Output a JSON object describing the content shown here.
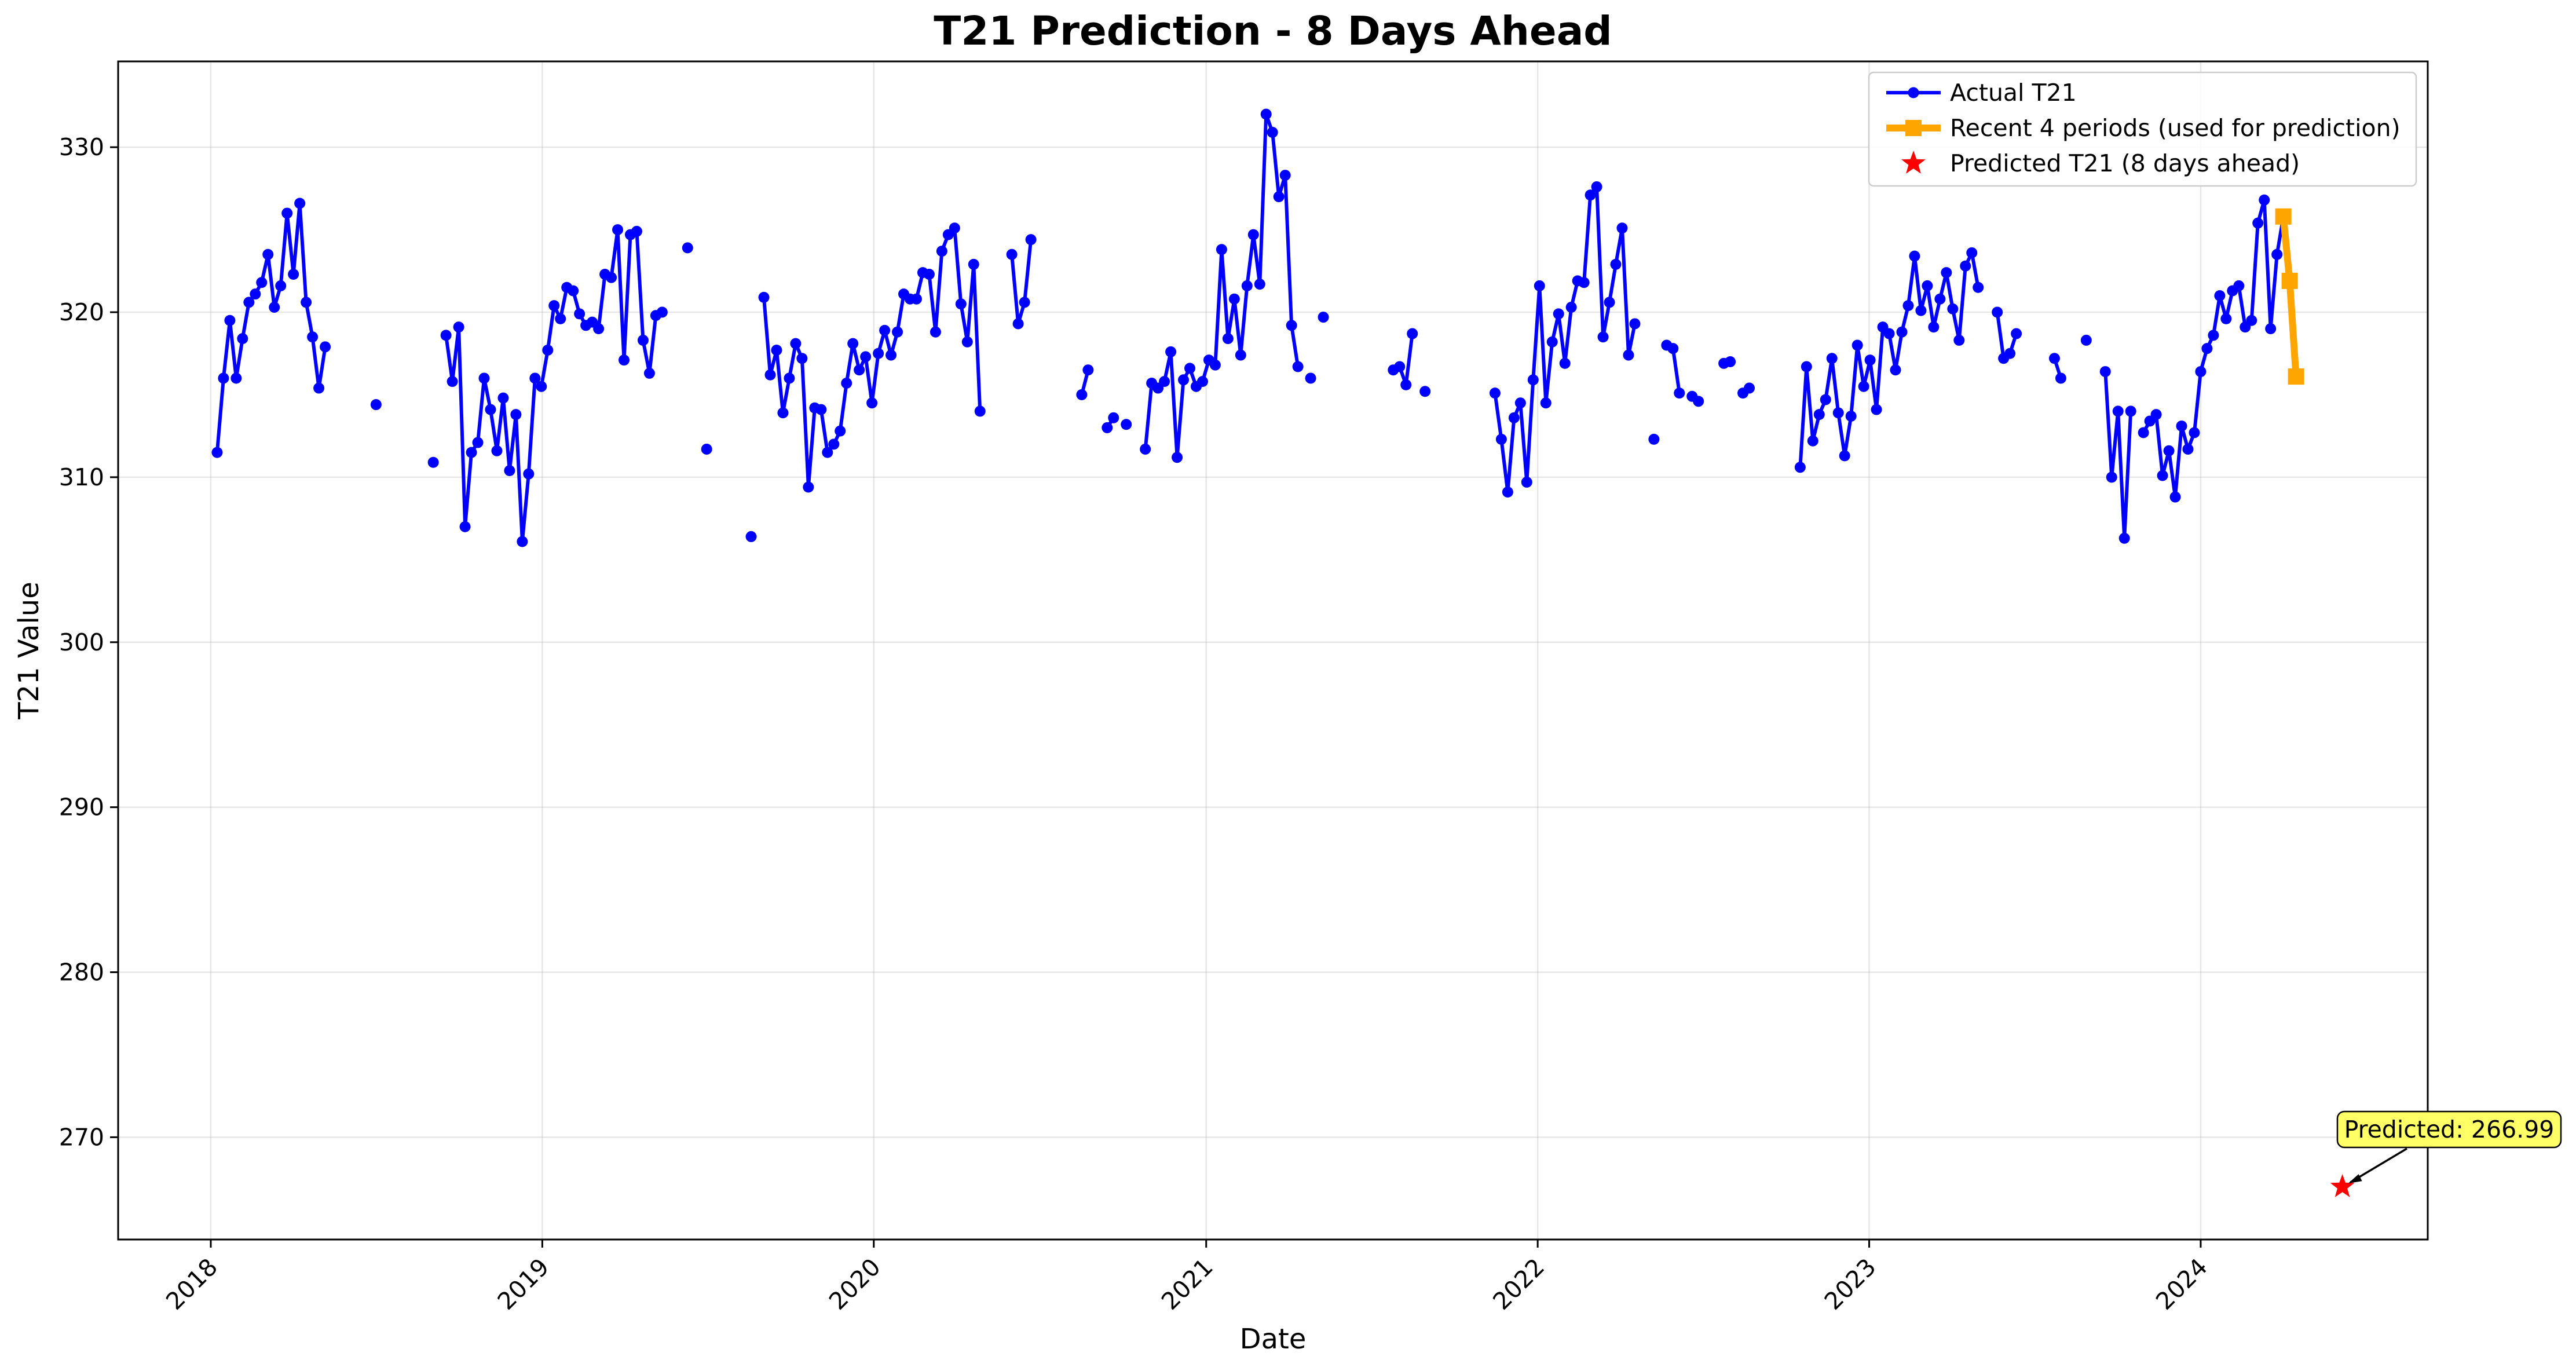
{
  "chart_data": {
    "type": "line",
    "title": "T21 Prediction - 8 Days Ahead",
    "xlabel": "Date",
    "ylabel": "T21 Value",
    "x_type": "date",
    "xlim": [
      "2017-09-21",
      "2024-09-07"
    ],
    "ylim": [
      263.8,
      335.2
    ],
    "grid": true,
    "legend_position": "top-right",
    "x_ticks": [
      "2018",
      "2019",
      "2020",
      "2021",
      "2022",
      "2023",
      "2024"
    ],
    "y_ticks": [
      270,
      280,
      290,
      300,
      310,
      320,
      330
    ],
    "colors": {
      "actual": "#0000ff",
      "recent": "#ffa500",
      "predicted": "#ff0000",
      "annotation_bg": "#ffff66"
    },
    "series": [
      {
        "name": "Actual T21",
        "style": "line-circle-markers",
        "segments": [
          [
            [
              "2018-01-08",
              311.5
            ],
            [
              "2018-01-15",
              316.0
            ],
            [
              "2018-01-22",
              319.5
            ],
            [
              "2018-01-29",
              316.0
            ],
            [
              "2018-02-05",
              318.4
            ],
            [
              "2018-02-12",
              320.6
            ],
            [
              "2018-02-19",
              321.1
            ],
            [
              "2018-02-26",
              321.8
            ],
            [
              "2018-03-05",
              323.5
            ],
            [
              "2018-03-12",
              320.3
            ],
            [
              "2018-03-19",
              321.6
            ],
            [
              "2018-03-26",
              326.0
            ],
            [
              "2018-04-02",
              322.3
            ],
            [
              "2018-04-09",
              326.6
            ],
            [
              "2018-04-16",
              320.6
            ],
            [
              "2018-04-23",
              318.5
            ],
            [
              "2018-04-30",
              315.4
            ],
            [
              "2018-05-07",
              317.9
            ]
          ],
          [
            [
              "2018-07-02",
              314.4
            ]
          ],
          [
            [
              "2018-09-03",
              310.9
            ]
          ],
          [
            [
              "2018-09-17",
              318.6
            ],
            [
              "2018-09-24",
              315.8
            ],
            [
              "2018-10-01",
              319.1
            ],
            [
              "2018-10-08",
              307.0
            ],
            [
              "2018-10-15",
              311.5
            ],
            [
              "2018-10-22",
              312.1
            ],
            [
              "2018-10-29",
              316.0
            ],
            [
              "2018-11-05",
              314.1
            ],
            [
              "2018-11-12",
              311.6
            ],
            [
              "2018-11-19",
              314.8
            ],
            [
              "2018-11-26",
              310.4
            ],
            [
              "2018-12-03",
              313.8
            ],
            [
              "2018-12-10",
              306.1
            ],
            [
              "2018-12-17",
              310.2
            ],
            [
              "2018-12-24",
              316.0
            ],
            [
              "2018-12-31",
              315.5
            ],
            [
              "2019-01-07",
              317.7
            ],
            [
              "2019-01-14",
              320.4
            ],
            [
              "2019-01-21",
              319.6
            ],
            [
              "2019-01-28",
              321.5
            ],
            [
              "2019-02-04",
              321.3
            ],
            [
              "2019-02-11",
              319.9
            ],
            [
              "2019-02-18",
              319.2
            ],
            [
              "2019-02-25",
              319.4
            ],
            [
              "2019-03-04",
              319.0
            ],
            [
              "2019-03-11",
              322.3
            ],
            [
              "2019-03-18",
              322.1
            ],
            [
              "2019-03-25",
              325.0
            ],
            [
              "2019-04-01",
              317.1
            ],
            [
              "2019-04-08",
              324.7
            ],
            [
              "2019-04-15",
              324.9
            ],
            [
              "2019-04-22",
              318.3
            ],
            [
              "2019-04-29",
              316.3
            ],
            [
              "2019-05-06",
              319.8
            ],
            [
              "2019-05-13",
              320.0
            ]
          ],
          [
            [
              "2019-06-10",
              323.9
            ]
          ],
          [
            [
              "2019-07-01",
              311.7
            ]
          ],
          [
            [
              "2019-08-19",
              306.4
            ]
          ],
          [
            [
              "2019-09-02",
              320.9
            ],
            [
              "2019-09-09",
              316.2
            ],
            [
              "2019-09-16",
              317.7
            ],
            [
              "2019-09-23",
              313.9
            ],
            [
              "2019-09-30",
              316.0
            ],
            [
              "2019-10-07",
              318.1
            ],
            [
              "2019-10-14",
              317.2
            ],
            [
              "2019-10-21",
              309.4
            ],
            [
              "2019-10-28",
              314.2
            ],
            [
              "2019-11-04",
              314.1
            ],
            [
              "2019-11-11",
              311.5
            ],
            [
              "2019-11-18",
              312.0
            ],
            [
              "2019-11-25",
              312.8
            ],
            [
              "2019-12-02",
              315.7
            ],
            [
              "2019-12-09",
              318.1
            ],
            [
              "2019-12-16",
              316.5
            ],
            [
              "2019-12-23",
              317.3
            ],
            [
              "2019-12-30",
              314.5
            ],
            [
              "2020-01-06",
              317.5
            ],
            [
              "2020-01-13",
              318.9
            ],
            [
              "2020-01-20",
              317.4
            ],
            [
              "2020-01-27",
              318.8
            ],
            [
              "2020-02-03",
              321.1
            ],
            [
              "2020-02-10",
              320.8
            ],
            [
              "2020-02-17",
              320.8
            ],
            [
              "2020-02-24",
              322.4
            ],
            [
              "2020-03-02",
              322.3
            ],
            [
              "2020-03-09",
              318.8
            ],
            [
              "2020-03-16",
              323.7
            ],
            [
              "2020-03-23",
              324.7
            ],
            [
              "2020-03-30",
              325.1
            ],
            [
              "2020-04-06",
              320.5
            ],
            [
              "2020-04-13",
              318.2
            ],
            [
              "2020-04-20",
              322.9
            ],
            [
              "2020-04-27",
              314.0
            ]
          ],
          [
            [
              "2020-06-01",
              323.5
            ],
            [
              "2020-06-08",
              319.3
            ],
            [
              "2020-06-15",
              320.6
            ],
            [
              "2020-06-22",
              324.4
            ]
          ],
          [
            [
              "2020-08-17",
              315.0
            ],
            [
              "2020-08-24",
              316.5
            ]
          ],
          [
            [
              "2020-09-14",
              313.0
            ],
            [
              "2020-09-21",
              313.6
            ]
          ],
          [
            [
              "2020-10-05",
              313.2
            ]
          ],
          [
            [
              "2020-10-26",
              311.7
            ],
            [
              "2020-11-02",
              315.7
            ],
            [
              "2020-11-09",
              315.4
            ],
            [
              "2020-11-16",
              315.8
            ],
            [
              "2020-11-23",
              317.6
            ],
            [
              "2020-11-30",
              311.2
            ],
            [
              "2020-12-07",
              315.9
            ],
            [
              "2020-12-14",
              316.6
            ],
            [
              "2020-12-21",
              315.5
            ],
            [
              "2020-12-28",
              315.8
            ],
            [
              "2021-01-04",
              317.1
            ],
            [
              "2021-01-11",
              316.8
            ],
            [
              "2021-01-18",
              323.8
            ],
            [
              "2021-01-25",
              318.4
            ],
            [
              "2021-02-01",
              320.8
            ],
            [
              "2021-02-08",
              317.4
            ],
            [
              "2021-02-15",
              321.6
            ],
            [
              "2021-02-22",
              324.7
            ],
            [
              "2021-03-01",
              321.7
            ],
            [
              "2021-03-08",
              332.0
            ],
            [
              "2021-03-15",
              330.9
            ],
            [
              "2021-03-22",
              327.0
            ],
            [
              "2021-03-29",
              328.3
            ],
            [
              "2021-04-05",
              319.2
            ],
            [
              "2021-04-12",
              316.7
            ]
          ],
          [
            [
              "2021-04-26",
              316.0
            ]
          ],
          [
            [
              "2021-05-10",
              319.7
            ]
          ],
          [
            [
              "2021-07-26",
              316.5
            ],
            [
              "2021-08-02",
              316.7
            ],
            [
              "2021-08-09",
              315.6
            ],
            [
              "2021-08-16",
              318.7
            ]
          ],
          [
            [
              "2021-08-30",
              315.2
            ]
          ],
          [
            [
              "2021-11-15",
              315.1
            ],
            [
              "2021-11-22",
              312.3
            ],
            [
              "2021-11-29",
              309.1
            ],
            [
              "2021-12-06",
              313.6
            ],
            [
              "2021-12-13",
              314.5
            ],
            [
              "2021-12-20",
              309.7
            ],
            [
              "2021-12-27",
              315.9
            ],
            [
              "2022-01-03",
              321.6
            ],
            [
              "2022-01-10",
              314.5
            ],
            [
              "2022-01-17",
              318.2
            ],
            [
              "2022-01-24",
              319.9
            ],
            [
              "2022-01-31",
              316.9
            ],
            [
              "2022-02-07",
              320.3
            ],
            [
              "2022-02-14",
              321.9
            ],
            [
              "2022-02-21",
              321.8
            ],
            [
              "2022-02-28",
              327.1
            ],
            [
              "2022-03-07",
              327.6
            ],
            [
              "2022-03-14",
              318.5
            ],
            [
              "2022-03-21",
              320.6
            ],
            [
              "2022-03-28",
              322.9
            ],
            [
              "2022-04-04",
              325.1
            ],
            [
              "2022-04-11",
              317.4
            ],
            [
              "2022-04-18",
              319.3
            ]
          ],
          [
            [
              "2022-05-09",
              312.3
            ]
          ],
          [
            [
              "2022-05-23",
              318.0
            ],
            [
              "2022-05-30",
              317.8
            ],
            [
              "2022-06-06",
              315.1
            ]
          ],
          [
            [
              "2022-06-20",
              314.9
            ],
            [
              "2022-06-27",
              314.6
            ]
          ],
          [
            [
              "2022-07-25",
              316.9
            ],
            [
              "2022-08-01",
              317.0
            ]
          ],
          [
            [
              "2022-08-15",
              315.1
            ],
            [
              "2022-08-22",
              315.4
            ]
          ],
          [
            [
              "2022-10-17",
              310.6
            ],
            [
              "2022-10-24",
              316.7
            ],
            [
              "2022-10-31",
              312.2
            ],
            [
              "2022-11-07",
              313.8
            ],
            [
              "2022-11-14",
              314.7
            ],
            [
              "2022-11-21",
              317.2
            ],
            [
              "2022-11-28",
              313.9
            ],
            [
              "2022-12-05",
              311.3
            ],
            [
              "2022-12-12",
              313.7
            ],
            [
              "2022-12-19",
              318.0
            ],
            [
              "2022-12-26",
              315.5
            ],
            [
              "2023-01-02",
              317.1
            ],
            [
              "2023-01-09",
              314.1
            ],
            [
              "2023-01-16",
              319.1
            ],
            [
              "2023-01-23",
              318.7
            ],
            [
              "2023-01-30",
              316.5
            ],
            [
              "2023-02-06",
              318.8
            ],
            [
              "2023-02-13",
              320.4
            ],
            [
              "2023-02-20",
              323.4
            ],
            [
              "2023-02-27",
              320.1
            ],
            [
              "2023-03-06",
              321.6
            ],
            [
              "2023-03-13",
              319.1
            ],
            [
              "2023-03-20",
              320.8
            ],
            [
              "2023-03-27",
              322.4
            ],
            [
              "2023-04-03",
              320.2
            ],
            [
              "2023-04-10",
              318.3
            ],
            [
              "2023-04-17",
              322.8
            ],
            [
              "2023-04-24",
              323.6
            ],
            [
              "2023-05-01",
              321.5
            ]
          ],
          [
            [
              "2023-05-22",
              320.0
            ],
            [
              "2023-05-29",
              317.2
            ],
            [
              "2023-06-05",
              317.5
            ],
            [
              "2023-06-12",
              318.7
            ]
          ],
          [
            [
              "2023-07-24",
              317.2
            ],
            [
              "2023-07-31",
              316.0
            ]
          ],
          [
            [
              "2023-08-28",
              318.3
            ]
          ],
          [
            [
              "2023-09-18",
              316.4
            ],
            [
              "2023-09-25",
              310.0
            ],
            [
              "2023-10-02",
              314.0
            ],
            [
              "2023-10-09",
              306.3
            ],
            [
              "2023-10-16",
              314.0
            ]
          ],
          [
            [
              "2023-10-30",
              312.7
            ],
            [
              "2023-11-06",
              313.4
            ],
            [
              "2023-11-13",
              313.8
            ],
            [
              "2023-11-20",
              310.1
            ],
            [
              "2023-11-27",
              311.6
            ],
            [
              "2023-12-04",
              308.8
            ],
            [
              "2023-12-11",
              313.1
            ],
            [
              "2023-12-18",
              311.7
            ],
            [
              "2023-12-25",
              312.7
            ],
            [
              "2024-01-01",
              316.4
            ],
            [
              "2024-01-08",
              317.8
            ],
            [
              "2024-01-15",
              318.6
            ],
            [
              "2024-01-22",
              321.0
            ],
            [
              "2024-01-29",
              319.6
            ],
            [
              "2024-02-05",
              321.3
            ],
            [
              "2024-02-12",
              321.6
            ],
            [
              "2024-02-19",
              319.1
            ],
            [
              "2024-02-26",
              319.5
            ],
            [
              "2024-03-04",
              325.4
            ],
            [
              "2024-03-11",
              326.8
            ],
            [
              "2024-03-18",
              319.0
            ],
            [
              "2024-03-25",
              323.5
            ],
            [
              "2024-04-01",
              325.8
            ]
          ]
        ]
      },
      {
        "name": "Recent 4 periods (used for prediction)",
        "style": "thick-line-square-markers",
        "points": [
          [
            "2024-04-01",
            325.8
          ],
          [
            "2024-04-08",
            321.9
          ],
          [
            "2024-04-15",
            316.1
          ]
        ]
      },
      {
        "name": "Predicted T21 (8 days ahead)",
        "style": "star-marker",
        "points": [
          [
            "2024-06-05",
            266.99
          ]
        ]
      }
    ],
    "annotation": {
      "text": "Predicted: 266.99",
      "target": [
        "2024-06-05",
        266.99
      ]
    }
  }
}
